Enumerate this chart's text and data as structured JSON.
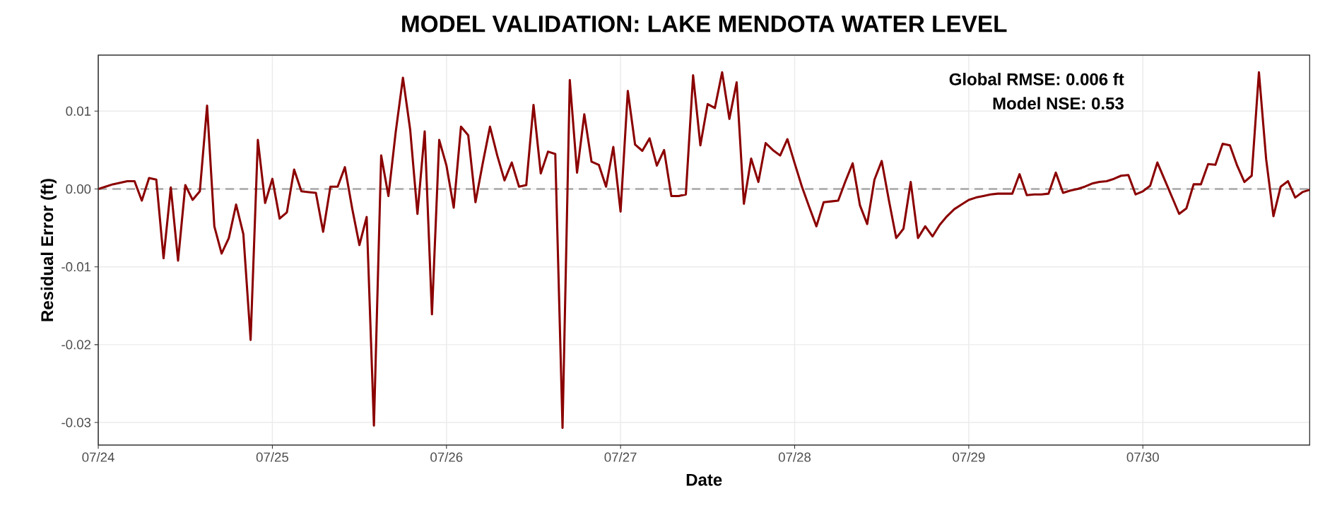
{
  "chart_data": {
    "type": "line",
    "title": "MODEL VALIDATION: LAKE MENDOTA WATER LEVEL",
    "xlabel": "Date",
    "ylabel": "Residual Error (ft)",
    "annotations": [
      "Global RMSE: 0.006 ft",
      "Model NSE: 0.53"
    ],
    "categories": [
      "07/24",
      null,
      null,
      null,
      null,
      null,
      null,
      null,
      null,
      null,
      null,
      null,
      null,
      null,
      null,
      null,
      null,
      null,
      null,
      null,
      null,
      null,
      null,
      null,
      "07/25",
      null,
      null,
      null,
      null,
      null,
      null,
      null,
      null,
      null,
      null,
      null,
      null,
      null,
      null,
      null,
      null,
      null,
      null,
      null,
      null,
      null,
      null,
      null,
      "07/26",
      null,
      null,
      null,
      null,
      null,
      null,
      null,
      null,
      null,
      null,
      null,
      null,
      null,
      null,
      null,
      null,
      null,
      null,
      null,
      null,
      null,
      null,
      null,
      "07/27",
      null,
      null,
      null,
      null,
      null,
      null,
      null,
      null,
      null,
      null,
      null,
      null,
      null,
      null,
      null,
      null,
      null,
      null,
      null,
      null,
      null,
      null,
      null,
      "07/28",
      null,
      null,
      null,
      null,
      null,
      null,
      null,
      null,
      null,
      null,
      null,
      null,
      null,
      null,
      null,
      null,
      null,
      null,
      null,
      null,
      null,
      null,
      null,
      "07/29",
      null,
      null,
      null,
      null,
      null,
      null,
      null,
      null,
      null,
      null,
      null,
      null,
      null,
      null,
      null,
      null,
      null,
      null,
      null,
      null,
      null,
      null,
      null,
      "07/30",
      null,
      null,
      null,
      null,
      null,
      null,
      null,
      null,
      null,
      null,
      null,
      null,
      null,
      null,
      null,
      null,
      null,
      null,
      null,
      null,
      null,
      null,
      null
    ],
    "series": [
      {
        "color": "#8b0000",
        "values": [
          0,
          0.0003,
          0.0006,
          0.0008,
          0.001,
          0.001,
          -0.0015,
          0.0014,
          0.0012,
          -0.0089,
          0.0002,
          -0.0092,
          0.0005,
          -0.0014,
          -0.0003,
          0.0107,
          -0.0048,
          -0.0083,
          -0.0063,
          -0.002,
          -0.0058,
          -0.0194,
          0.0063,
          -0.0018,
          0.0013,
          -0.0038,
          -0.003,
          0.0025,
          -0.0003,
          -0.0004,
          -0.0005,
          -0.0055,
          0.0003,
          0.0003,
          0.0028,
          -0.0025,
          -0.0072,
          -0.0036,
          -0.0304,
          0.0043,
          -0.0009,
          0.0073,
          0.0143,
          0.0076,
          -0.0032,
          0.0074,
          -0.0161,
          0.0063,
          0.003,
          -0.0024,
          0.008,
          0.0069,
          -0.0017,
          0.0033,
          0.008,
          0.0043,
          0.0011,
          0.0034,
          0.0003,
          0.0005,
          0.0108,
          0.002,
          0.0048,
          0.0045,
          -0.0307,
          0.014,
          0.0021,
          0.0096,
          0.0035,
          0.0031,
          0.0003,
          0.0054,
          -0.0029,
          0.0126,
          0.0057,
          0.0049,
          0.0065,
          0.003,
          0.005,
          -0.0009,
          -0.0009,
          -0.0007,
          0.0146,
          0.0056,
          0.0109,
          0.0104,
          0.015,
          0.009,
          0.0137,
          -0.0019,
          0.0039,
          0.0009,
          0.0059,
          0.005,
          0.0043,
          0.0064,
          0.0033,
          0.0003,
          -0.0023,
          -0.0048,
          -0.0017,
          -0.0016,
          -0.0015,
          0.001,
          0.0033,
          -0.0021,
          -0.0045,
          0.0012,
          0.0036,
          -0.0015,
          -0.0063,
          -0.0051,
          0.0009,
          -0.0063,
          -0.0048,
          -0.0061,
          -0.0046,
          -0.0035,
          -0.0026,
          -0.002,
          -0.0014,
          -0.0011,
          -0.0009,
          -0.0007,
          -0.0006,
          -0.0006,
          -0.0006,
          0.0019,
          -0.0008,
          -0.0007,
          -0.0007,
          -0.0006,
          0.0021,
          -0.0005,
          -0.0002,
          0,
          0.0003,
          0.0007,
          0.0009,
          0.001,
          0.0013,
          0.0017,
          0.0018,
          -0.0007,
          -0.0003,
          0.0004,
          0.0034,
          0.0012,
          -0.001,
          -0.0032,
          -0.0025,
          0.0006,
          0.0006,
          0.0032,
          0.0031,
          0.0058,
          0.0056,
          0.003,
          0.0009,
          0.0017,
          0.015,
          0.0038,
          -0.0035,
          0.0003,
          0.001,
          -0.0011,
          -0.0004,
          -0.0001
        ]
      }
    ],
    "ylim": [
      -0.0329,
      0.0172
    ],
    "yticks": [
      {
        "value": -0.03,
        "label": "-0.03"
      },
      {
        "value": -0.02,
        "label": "-0.02"
      },
      {
        "value": -0.01,
        "label": "-0.01"
      },
      {
        "value": 0,
        "label": "0.00"
      },
      {
        "value": 0.01,
        "label": "0.01"
      }
    ],
    "ref_lines": [
      {
        "axis": "y",
        "value": 0,
        "color": "#a6a6a6",
        "line_style": "dashed"
      }
    ],
    "grid": true,
    "line_style": "solid"
  }
}
